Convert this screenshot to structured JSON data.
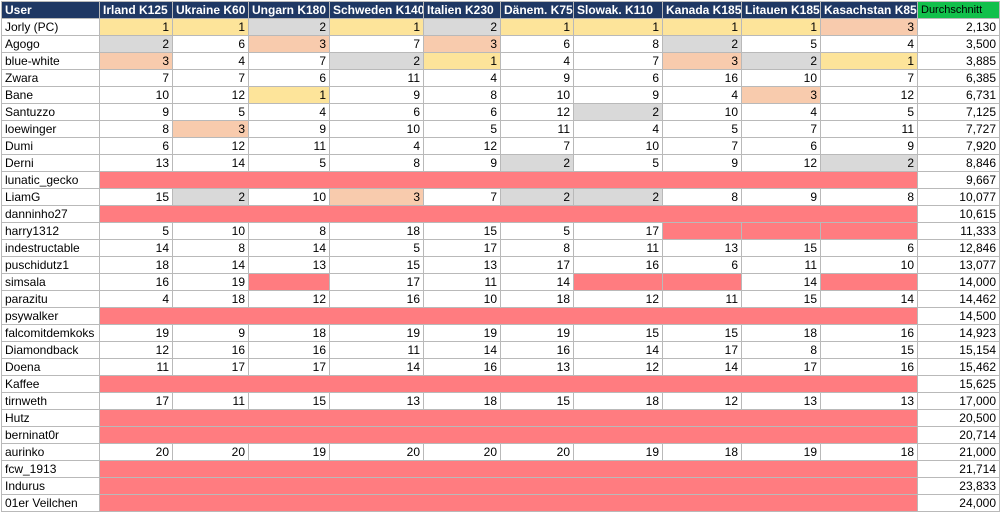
{
  "headers": {
    "user": "User",
    "races": [
      "Irland K125",
      "Ukraine K60",
      "Ungarn K180",
      "Schweden K140",
      "Italien K230",
      "Dänem. K75",
      "Slowak. K110",
      "Kanada K185",
      "Litauen K185",
      "Kasachstan K85"
    ],
    "average": "Durchschnitt"
  },
  "colors": {
    "header_bg": "#1f3864",
    "average_header_bg": "#11c04b",
    "gold": "#fde49a",
    "silver": "#d9d9d9",
    "bronze": "#f8cbad",
    "missing": "#ff7c80"
  },
  "rows": [
    {
      "user": "Jorly (PC)",
      "values": [
        "1",
        "1",
        "2",
        "1",
        "2",
        "1",
        "1",
        "1",
        "1",
        "3"
      ],
      "average": "2,130"
    },
    {
      "user": "Agogo",
      "values": [
        "2",
        "6",
        "3",
        "7",
        "3",
        "6",
        "8",
        "2",
        "5",
        "4"
      ],
      "average": "3,500"
    },
    {
      "user": "blue-white",
      "values": [
        "3",
        "4",
        "7",
        "2",
        "1",
        "4",
        "7",
        "3",
        "2",
        "1"
      ],
      "average": "3,885"
    },
    {
      "user": "Zwara",
      "values": [
        "7",
        "7",
        "6",
        "11",
        "4",
        "9",
        "6",
        "16",
        "10",
        "7"
      ],
      "average": "6,385"
    },
    {
      "user": "Bane",
      "values": [
        "10",
        "12",
        "1",
        "9",
        "8",
        "10",
        "9",
        "4",
        "3",
        "12"
      ],
      "average": "6,731"
    },
    {
      "user": "Santuzzo",
      "values": [
        "9",
        "5",
        "4",
        "6",
        "6",
        "12",
        "2",
        "10",
        "4",
        "5"
      ],
      "average": "7,125"
    },
    {
      "user": "loewinger",
      "values": [
        "8",
        "3",
        "9",
        "10",
        "5",
        "11",
        "4",
        "5",
        "7",
        "11"
      ],
      "average": "7,727"
    },
    {
      "user": "Dumi",
      "values": [
        "6",
        "12",
        "11",
        "4",
        "12",
        "7",
        "10",
        "7",
        "6",
        "9"
      ],
      "average": "7,920"
    },
    {
      "user": "Derni",
      "values": [
        "13",
        "14",
        "5",
        "8",
        "9",
        "2",
        "5",
        "9",
        "12",
        "2"
      ],
      "average": "8,846"
    },
    {
      "user": "lunatic_gecko",
      "values": [
        "",
        "",
        "",
        "",
        "",
        "",
        "",
        "",
        "",
        ""
      ],
      "average": "9,667"
    },
    {
      "user": "LiamG",
      "values": [
        "15",
        "2",
        "10",
        "3",
        "7",
        "2",
        "2",
        "8",
        "9",
        "8"
      ],
      "average": "10,077"
    },
    {
      "user": "danninho27",
      "values": [
        "",
        "",
        "",
        "",
        "",
        "",
        "",
        "",
        "",
        ""
      ],
      "average": "10,615"
    },
    {
      "user": "harry1312",
      "values": [
        "5",
        "10",
        "8",
        "18",
        "15",
        "5",
        "17",
        "",
        "",
        ""
      ],
      "average": "11,333"
    },
    {
      "user": "indestructable",
      "values": [
        "14",
        "8",
        "14",
        "5",
        "17",
        "8",
        "11",
        "13",
        "15",
        "6"
      ],
      "average": "12,846"
    },
    {
      "user": "puschidutz1",
      "values": [
        "18",
        "14",
        "13",
        "15",
        "13",
        "17",
        "16",
        "6",
        "11",
        "10"
      ],
      "average": "13,077"
    },
    {
      "user": "simsala",
      "values": [
        "16",
        "19",
        "",
        "17",
        "11",
        "14",
        "",
        "",
        "14",
        ""
      ],
      "average": "14,000"
    },
    {
      "user": "parazitu",
      "values": [
        "4",
        "18",
        "12",
        "16",
        "10",
        "18",
        "12",
        "11",
        "15",
        "14"
      ],
      "average": "14,462"
    },
    {
      "user": "psywalker",
      "values": [
        "",
        "",
        "",
        "",
        "",
        "",
        "",
        "",
        "",
        ""
      ],
      "average": "14,500"
    },
    {
      "user": "falcomitdemkoks",
      "values": [
        "19",
        "9",
        "18",
        "19",
        "19",
        "19",
        "15",
        "15",
        "18",
        "16"
      ],
      "average": "14,923"
    },
    {
      "user": "Diamondback",
      "values": [
        "12",
        "16",
        "16",
        "11",
        "14",
        "16",
        "14",
        "17",
        "8",
        "15"
      ],
      "average": "15,154"
    },
    {
      "user": "Doena",
      "values": [
        "11",
        "17",
        "17",
        "14",
        "16",
        "13",
        "12",
        "14",
        "17",
        "16"
      ],
      "average": "15,462"
    },
    {
      "user": "Kaffee",
      "values": [
        "",
        "",
        "",
        "",
        "",
        "",
        "",
        "",
        "",
        ""
      ],
      "average": "15,625"
    },
    {
      "user": "tirnweth",
      "values": [
        "17",
        "11",
        "15",
        "13",
        "18",
        "15",
        "18",
        "12",
        "13",
        "13"
      ],
      "average": "17,000"
    },
    {
      "user": "Hutz",
      "values": [
        "",
        "",
        "",
        "",
        "",
        "",
        "",
        "",
        "",
        ""
      ],
      "average": "20,500"
    },
    {
      "user": "berninat0r",
      "values": [
        "",
        "",
        "",
        "",
        "",
        "",
        "",
        "",
        "",
        ""
      ],
      "average": "20,714"
    },
    {
      "user": "aurinko",
      "values": [
        "20",
        "20",
        "19",
        "20",
        "20",
        "20",
        "19",
        "18",
        "19",
        "18"
      ],
      "average": "21,000"
    },
    {
      "user": "fcw_1913",
      "values": [
        "",
        "",
        "",
        "",
        "",
        "",
        "",
        "",
        "",
        ""
      ],
      "average": "21,714"
    },
    {
      "user": "Indurus",
      "values": [
        "",
        "",
        "",
        "",
        "",
        "",
        "",
        "",
        "",
        ""
      ],
      "average": "23,833"
    },
    {
      "user": "01er Veilchen",
      "values": [
        "",
        "",
        "",
        "",
        "",
        "",
        "",
        "",
        "",
        ""
      ],
      "average": "24,000"
    }
  ]
}
